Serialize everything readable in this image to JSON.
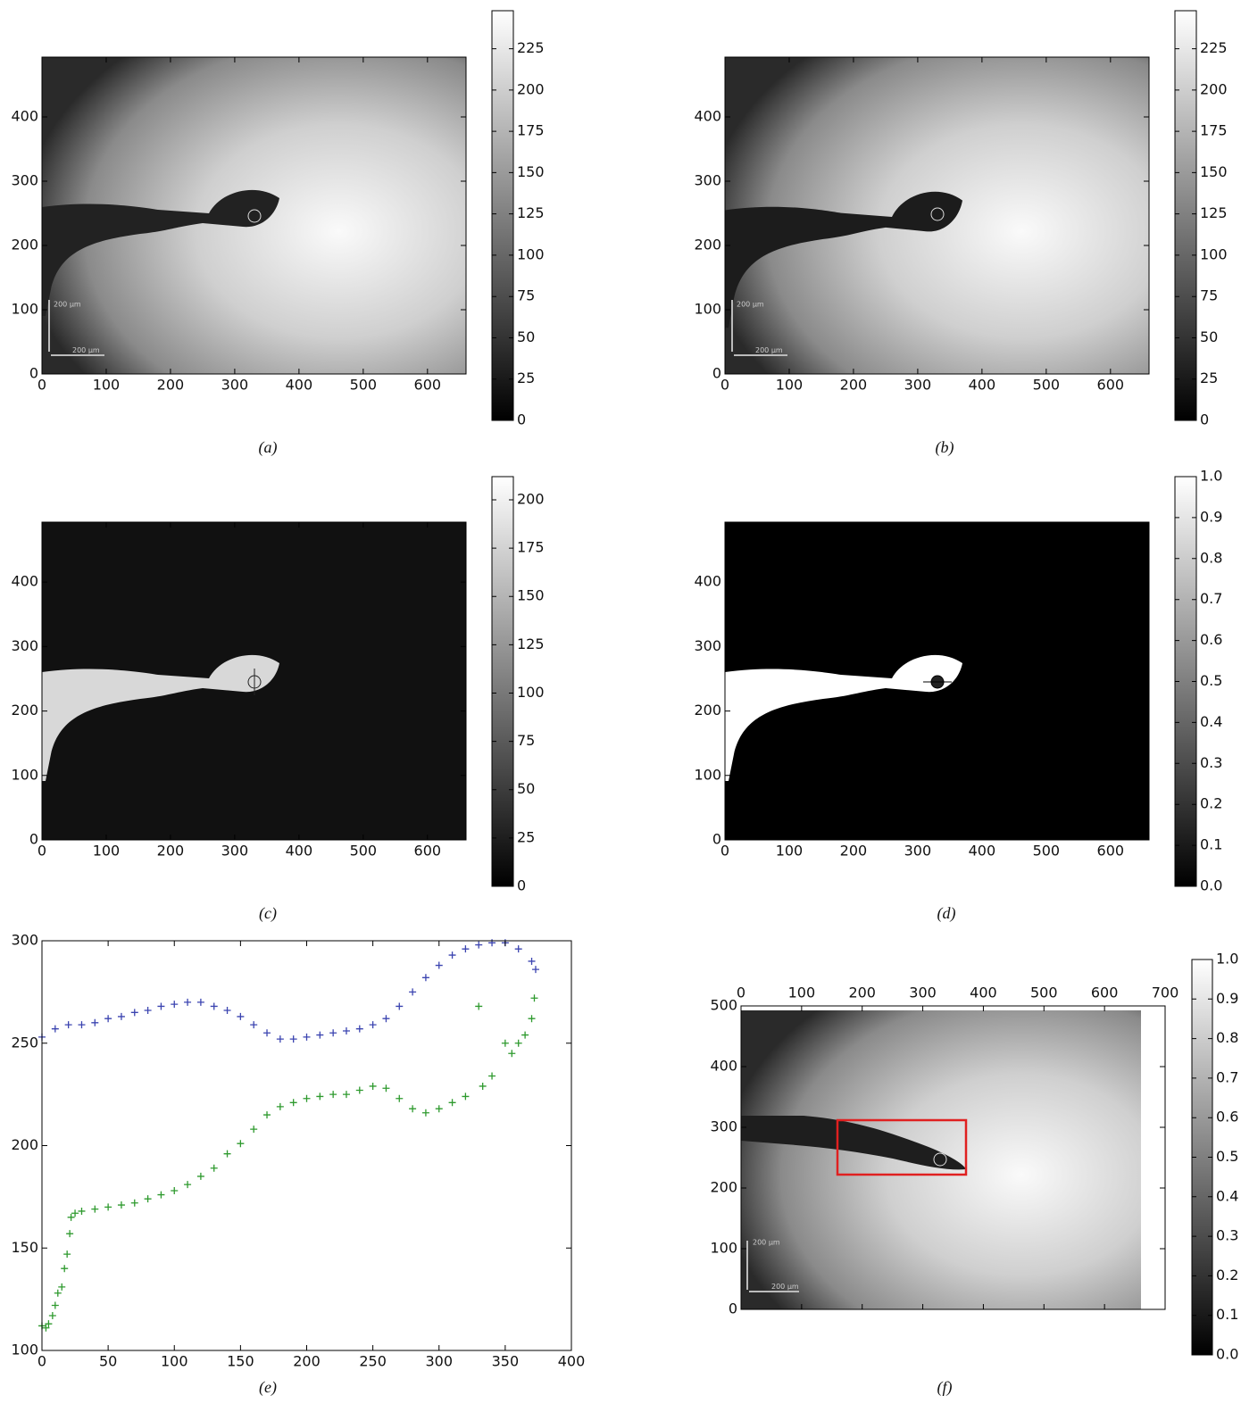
{
  "chart_data": [
    {
      "type": "image",
      "caption": "(a)",
      "xlim": [
        0,
        660
      ],
      "ylim": [
        0,
        493
      ],
      "xticks": [
        0,
        100,
        200,
        300,
        400,
        500,
        600
      ],
      "yticks": [
        0,
        100,
        200,
        300,
        400
      ],
      "clim": [
        0,
        248
      ],
      "cticks": [
        0,
        25,
        50,
        75,
        100,
        125,
        150,
        175,
        200,
        225
      ],
      "scale_labels": [
        "200 µm",
        "200 µm"
      ]
    },
    {
      "type": "image",
      "caption": "(b)",
      "xlim": [
        0,
        660
      ],
      "ylim": [
        0,
        493
      ],
      "xticks": [
        0,
        100,
        200,
        300,
        400,
        500,
        600
      ],
      "yticks": [
        0,
        100,
        200,
        300,
        400
      ],
      "clim": [
        0,
        248
      ],
      "cticks": [
        0,
        25,
        50,
        75,
        100,
        125,
        150,
        175,
        200,
        225
      ],
      "scale_labels": [
        "200 µm",
        "200 µm"
      ]
    },
    {
      "type": "image",
      "caption": "(c)",
      "xlim": [
        0,
        660
      ],
      "ylim": [
        0,
        493
      ],
      "xticks": [
        0,
        100,
        200,
        300,
        400,
        500,
        600
      ],
      "yticks": [
        0,
        100,
        200,
        300,
        400
      ],
      "clim": [
        0,
        212
      ],
      "cticks": [
        0,
        25,
        50,
        75,
        100,
        125,
        150,
        175,
        200
      ]
    },
    {
      "type": "image",
      "caption": "(d)",
      "xlim": [
        0,
        660
      ],
      "ylim": [
        0,
        493
      ],
      "xticks": [
        0,
        100,
        200,
        300,
        400,
        500,
        600
      ],
      "yticks": [
        0,
        100,
        200,
        300,
        400
      ],
      "clim": [
        0,
        1
      ],
      "cticks": [
        {
          "value": 0,
          "label": "0.0"
        },
        0.1,
        0.2,
        0.3,
        0.4,
        0.5,
        0.6,
        0.7,
        0.8,
        0.9,
        {
          "value": 1,
          "label": "1.0"
        }
      ]
    },
    {
      "type": "scatter",
      "caption": "(e)",
      "marker": "+",
      "xlim": [
        0,
        400
      ],
      "ylim": [
        100,
        300
      ],
      "xticks": [
        0,
        50,
        100,
        150,
        200,
        250,
        300,
        350,
        400
      ],
      "yticks": [
        100,
        150,
        200,
        250,
        300
      ],
      "series": [
        {
          "color": "#3b44b0",
          "x": [
            0,
            10,
            20,
            30,
            40,
            50,
            60,
            70,
            80,
            90,
            100,
            110,
            120,
            130,
            140,
            150,
            160,
            170,
            180,
            190,
            200,
            210,
            220,
            230,
            240,
            250,
            260,
            270,
            280,
            290,
            300,
            310,
            320,
            330,
            340,
            350,
            360,
            370,
            373
          ],
          "values": [
            253,
            257,
            259,
            259,
            260,
            262,
            263,
            265,
            266,
            268,
            269,
            270,
            270,
            268,
            266,
            263,
            259,
            255,
            252,
            252,
            253,
            254,
            255,
            256,
            257,
            259,
            262,
            268,
            275,
            282,
            288,
            293,
            296,
            298,
            299,
            299,
            296,
            290,
            286
          ]
        },
        {
          "color": "#2e9a2e",
          "x": [
            0,
            3,
            5,
            8,
            10,
            12,
            15,
            17,
            19,
            21,
            22,
            25,
            30,
            40,
            50,
            60,
            70,
            80,
            90,
            100,
            110,
            120,
            130,
            140,
            150,
            160,
            170,
            180,
            190,
            200,
            210,
            220,
            230,
            240,
            250,
            260,
            270,
            280,
            290,
            300,
            310,
            320,
            330,
            333,
            340,
            350,
            355,
            360,
            365,
            370,
            372
          ],
          "values": [
            112,
            111,
            113,
            117,
            122,
            128,
            131,
            140,
            147,
            157,
            165,
            167,
            168,
            169,
            170,
            171,
            172,
            174,
            176,
            178,
            181,
            185,
            189,
            196,
            201,
            208,
            215,
            219,
            221,
            223,
            224,
            225,
            225,
            227,
            229,
            228,
            223,
            218,
            216,
            218,
            221,
            224,
            268,
            229,
            234,
            250,
            245,
            250,
            254,
            262,
            272
          ]
        }
      ]
    },
    {
      "type": "image",
      "caption": "(f)",
      "xaxis_position": "top",
      "xlim": [
        0,
        700
      ],
      "ylim": [
        0,
        500
      ],
      "xticks": [
        0,
        100,
        200,
        300,
        400,
        500,
        600,
        700
      ],
      "yticks": [
        0,
        100,
        200,
        300,
        400,
        500
      ],
      "clim": [
        0,
        1
      ],
      "cticks": [
        {
          "value": 0,
          "label": "0.0"
        },
        0.1,
        0.2,
        0.3,
        0.4,
        0.5,
        0.6,
        0.7,
        0.8,
        0.9,
        {
          "value": 1,
          "label": "1.0"
        }
      ],
      "scale_labels": [
        "200 µm",
        "200 µm"
      ]
    }
  ]
}
